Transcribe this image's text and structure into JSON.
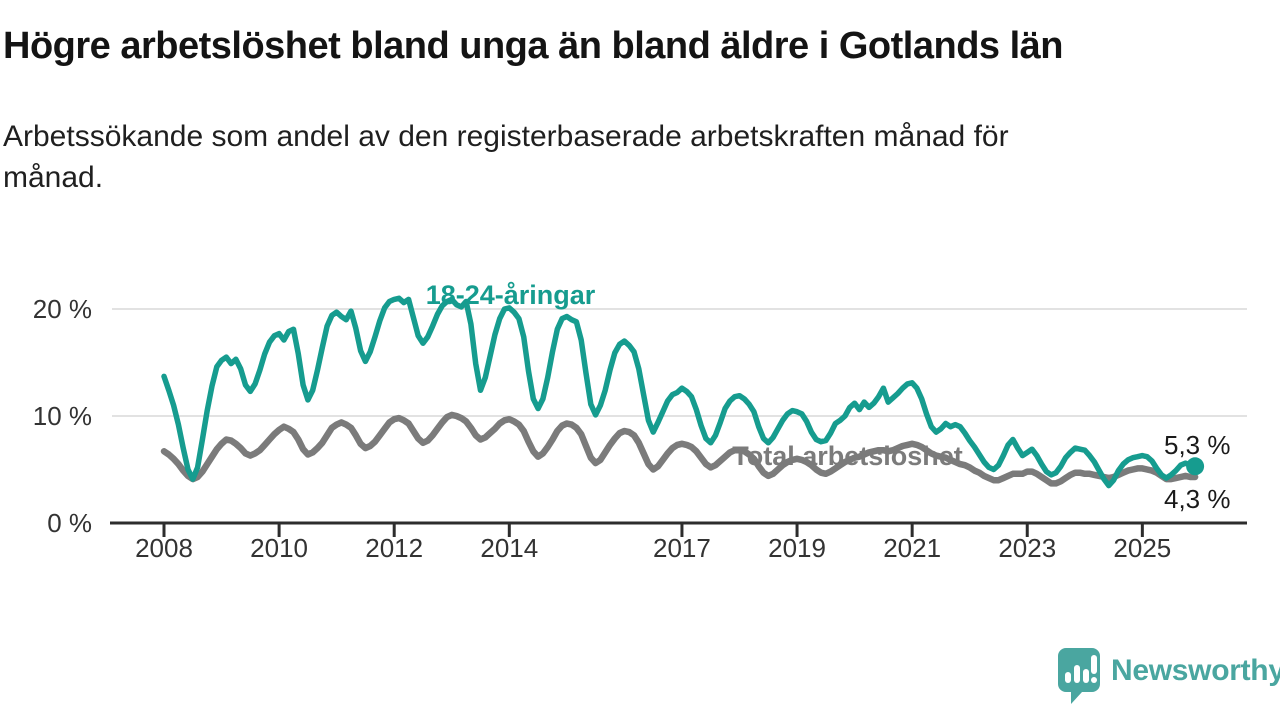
{
  "header": {
    "title": "Högre arbetslöshet bland unga än bland äldre i Gotlands län",
    "subtitle": "Arbetssökande som andel av den registerbaserade arbetskraften månad för\nmånad."
  },
  "branding": {
    "name": "Newsworthy",
    "color": "#4aa6a0",
    "icon": "bar-chart-speech-bubble-icon"
  },
  "colors": {
    "grid": "#d9d9d9",
    "axis": "#2d2d2d",
    "tick_text": "#333333",
    "annotation_text": "#1a1a1a"
  },
  "chart_data": {
    "type": "line",
    "title": "Högre arbetslöshet bland unga än bland äldre i Gotlands län",
    "xlabel": "",
    "ylabel": "",
    "unit": "%",
    "x_start": "2008-01",
    "x_interval": "monthly",
    "x_ticks": [
      2008,
      2010,
      2012,
      2014,
      2017,
      2019,
      2021,
      2023,
      2025
    ],
    "y_ticks": [
      0,
      10,
      20
    ],
    "y_tick_suffix": " %",
    "ylim": [
      0,
      22.5
    ],
    "grid": true,
    "legend_position": "inline-labels",
    "series": [
      {
        "name": "18-24-åringar",
        "color": "#169c8f",
        "end_label": "5,3 %",
        "end_value": 5.3,
        "values": [
          13.7,
          12.4,
          11.0,
          9.2,
          7.0,
          5.0,
          4.1,
          5.2,
          7.8,
          10.5,
          12.8,
          14.6,
          15.2,
          15.5,
          14.9,
          15.3,
          14.4,
          12.9,
          12.3,
          13.0,
          14.3,
          15.8,
          16.9,
          17.5,
          17.7,
          17.1,
          17.9,
          18.1,
          15.8,
          12.9,
          11.5,
          12.4,
          14.3,
          16.4,
          18.4,
          19.4,
          19.7,
          19.3,
          19.0,
          19.8,
          18.2,
          16.1,
          15.1,
          16.0,
          17.4,
          18.9,
          20.1,
          20.7,
          20.9,
          21.0,
          20.6,
          20.9,
          19.2,
          17.5,
          16.8,
          17.4,
          18.4,
          19.5,
          20.3,
          20.7,
          20.9,
          20.4,
          20.2,
          20.7,
          18.6,
          14.9,
          12.4,
          13.6,
          15.6,
          17.6,
          19.1,
          20.0,
          20.1,
          19.7,
          19.1,
          17.4,
          14.2,
          11.6,
          10.7,
          11.6,
          13.6,
          16.0,
          18.1,
          19.1,
          19.3,
          19.0,
          18.8,
          17.1,
          14.0,
          11.1,
          10.1,
          11.0,
          12.4,
          14.3,
          15.9,
          16.7,
          17.0,
          16.6,
          16.0,
          14.4,
          12.0,
          9.6,
          8.5,
          9.4,
          10.4,
          11.4,
          12.0,
          12.2,
          12.6,
          12.3,
          11.8,
          10.6,
          9.1,
          7.9,
          7.5,
          8.2,
          9.4,
          10.7,
          11.4,
          11.8,
          11.9,
          11.6,
          11.1,
          10.4,
          9.0,
          7.9,
          7.5,
          8.0,
          8.8,
          9.6,
          10.2,
          10.5,
          10.4,
          10.2,
          9.5,
          8.5,
          7.8,
          7.6,
          7.7,
          8.4,
          9.3,
          9.6,
          10.0,
          10.8,
          11.2,
          10.6,
          11.3,
          10.8,
          11.2,
          11.8,
          12.6,
          11.3,
          11.7,
          12.1,
          12.6,
          13.0,
          13.1,
          12.6,
          11.6,
          10.2,
          9.0,
          8.5,
          8.8,
          9.3,
          9.0,
          9.2,
          9.0,
          8.4,
          7.7,
          7.1,
          6.4,
          5.7,
          5.2,
          5.0,
          5.4,
          6.3,
          7.3,
          7.8,
          7.0,
          6.3,
          6.6,
          6.9,
          6.3,
          5.5,
          4.8,
          4.5,
          4.7,
          5.3,
          6.1,
          6.6,
          7.0,
          6.9,
          6.8,
          6.3,
          5.7,
          4.9,
          4.1,
          3.5,
          4.0,
          4.9,
          5.5,
          5.9,
          6.1,
          6.2,
          6.3,
          6.2,
          5.8,
          5.1,
          4.5,
          4.2,
          4.5,
          4.9,
          5.4,
          5.6,
          5.4,
          5.3
        ]
      },
      {
        "name": "Total arbetslöshet",
        "color": "#7b7b7b",
        "end_label": "4,3 %",
        "end_value": 4.3,
        "values": [
          6.7,
          6.4,
          6.0,
          5.5,
          4.9,
          4.4,
          4.1,
          4.3,
          4.8,
          5.5,
          6.2,
          6.9,
          7.4,
          7.8,
          7.7,
          7.4,
          7.0,
          6.5,
          6.3,
          6.5,
          6.8,
          7.3,
          7.8,
          8.3,
          8.7,
          9.0,
          8.8,
          8.5,
          7.8,
          6.9,
          6.4,
          6.6,
          7.0,
          7.5,
          8.2,
          8.9,
          9.2,
          9.4,
          9.2,
          8.9,
          8.2,
          7.4,
          7.0,
          7.2,
          7.6,
          8.2,
          8.8,
          9.4,
          9.7,
          9.8,
          9.6,
          9.3,
          8.6,
          7.9,
          7.5,
          7.7,
          8.2,
          8.8,
          9.4,
          9.9,
          10.1,
          10.0,
          9.8,
          9.5,
          8.9,
          8.2,
          7.8,
          8.0,
          8.4,
          8.8,
          9.3,
          9.6,
          9.7,
          9.5,
          9.2,
          8.6,
          7.6,
          6.7,
          6.2,
          6.5,
          7.1,
          7.8,
          8.6,
          9.1,
          9.3,
          9.2,
          8.9,
          8.3,
          7.2,
          6.1,
          5.6,
          5.9,
          6.6,
          7.3,
          7.9,
          8.4,
          8.6,
          8.5,
          8.2,
          7.5,
          6.5,
          5.5,
          5.0,
          5.3,
          5.9,
          6.5,
          7.0,
          7.3,
          7.4,
          7.3,
          7.1,
          6.7,
          6.1,
          5.5,
          5.2,
          5.4,
          5.8,
          6.2,
          6.6,
          6.8,
          6.8,
          6.7,
          6.4,
          6.0,
          5.3,
          4.7,
          4.4,
          4.6,
          5.0,
          5.4,
          5.7,
          5.9,
          6.0,
          5.9,
          5.7,
          5.4,
          5.0,
          4.7,
          4.6,
          4.8,
          5.1,
          5.4,
          5.7,
          5.9,
          6.1,
          6.2,
          6.4,
          6.6,
          6.7,
          6.8,
          6.8,
          6.7,
          6.8,
          7.0,
          7.2,
          7.3,
          7.4,
          7.3,
          7.1,
          6.8,
          6.5,
          6.3,
          6.2,
          6.1,
          5.9,
          5.7,
          5.5,
          5.4,
          5.2,
          4.9,
          4.7,
          4.4,
          4.2,
          4.0,
          4.0,
          4.2,
          4.4,
          4.6,
          4.6,
          4.6,
          4.8,
          4.8,
          4.6,
          4.3,
          4.0,
          3.7,
          3.7,
          3.9,
          4.2,
          4.5,
          4.7,
          4.7,
          4.6,
          4.6,
          4.5,
          4.4,
          4.3,
          4.2,
          4.3,
          4.5,
          4.7,
          4.9,
          5.0,
          5.1,
          5.1,
          5.0,
          4.9,
          4.7,
          4.4,
          4.1,
          4.1,
          4.2,
          4.3,
          4.4,
          4.3,
          4.3
        ]
      }
    ]
  }
}
